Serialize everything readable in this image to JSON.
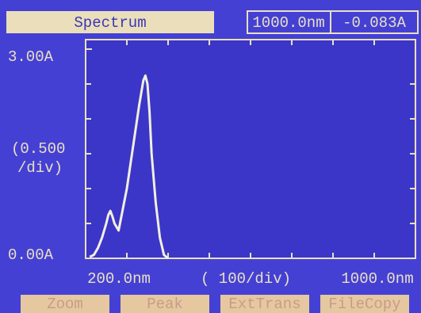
{
  "header": {
    "title": "Spectrum",
    "wavelength": "1000.0nm",
    "absorbance": "-0.083A"
  },
  "buttons": [
    "Zoom",
    "Peak",
    "ExtTrans",
    "FileCopy"
  ],
  "chart_data": {
    "type": "line",
    "x": [
      210,
      220,
      230,
      240,
      250,
      255,
      260,
      265,
      270,
      275,
      280,
      290,
      300,
      310,
      320,
      330,
      340,
      345,
      350,
      355,
      360,
      370,
      380,
      390,
      400
    ],
    "series": [
      {
        "color": "#f2efe0",
        "values": [
          0.02,
          0.05,
          0.15,
          0.3,
          0.5,
          0.62,
          0.68,
          0.6,
          0.5,
          0.45,
          0.4,
          0.7,
          1.0,
          1.4,
          1.8,
          2.2,
          2.55,
          2.62,
          2.5,
          2.1,
          1.5,
          0.8,
          0.3,
          0.05,
          0.0
        ]
      }
    ],
    "xlim": [
      200,
      1000
    ],
    "ylim": [
      0,
      3
    ],
    "xticks": [
      {
        "value": 200,
        "label": "200.0nm"
      },
      {
        "value": 1000,
        "label": "1000.0nm"
      }
    ],
    "yticks": [
      {
        "value": 0,
        "label": "0.00A"
      },
      {
        "value": 3,
        "label": "3.00A"
      }
    ],
    "xminor_ticks": [
      300,
      400,
      500,
      600,
      700,
      800,
      900
    ],
    "yminor_ticks": [
      0.5,
      1,
      1.5,
      2,
      2.5
    ],
    "xlabel": "( 100/div)",
    "y_scale_label": [
      "(0.500",
      "/div)"
    ],
    "grid": false
  }
}
